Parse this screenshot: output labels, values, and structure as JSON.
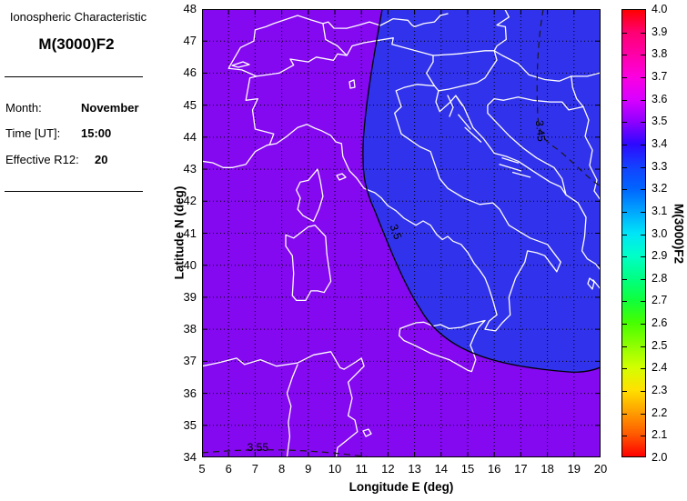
{
  "panel": {
    "app_title": "Ionospheric Characteristic",
    "parameter": "M(3000)F2",
    "fields": [
      {
        "label": "Month:",
        "value": "November"
      },
      {
        "label": "Time [UT]:",
        "value": "15:00"
      },
      {
        "label": "Effective R12:",
        "value": "20"
      }
    ]
  },
  "chart_data": {
    "type": "heatmap",
    "title": "M(3000)F2",
    "xlabel": "Longitude E (deg)",
    "ylabel": "Latitude N (deg)",
    "xlim": [
      5,
      20
    ],
    "ylim": [
      34,
      48
    ],
    "x_ticks": [
      5,
      6,
      7,
      8,
      9,
      10,
      11,
      12,
      13,
      14,
      15,
      16,
      17,
      18,
      19,
      20
    ],
    "y_ticks": [
      34,
      35,
      36,
      37,
      38,
      39,
      40,
      41,
      42,
      43,
      44,
      45,
      46,
      47,
      48
    ],
    "grid": true,
    "map_region": "Italy and central Mediterranean",
    "fill_regions": [
      {
        "name": "west-region",
        "value_band": "3.5-3.6",
        "color": "#8408F0"
      },
      {
        "name": "southeast-oval",
        "value_band": "3.4-3.5",
        "color": "#3132EC"
      }
    ],
    "contours": [
      {
        "value": "3.45",
        "style": "dashed",
        "label_lon": 17.75,
        "label_lat": 44.2,
        "label_rotation": 84
      },
      {
        "value": "3.5",
        "style": "solid",
        "label_lon": 12.3,
        "label_lat": 41.05,
        "label_rotation": 70
      },
      {
        "value": "3.55",
        "style": "dashed",
        "label_lon": 7.1,
        "label_lat": 34.3,
        "label_rotation": 0
      }
    ],
    "colorbar": {
      "label": "M(3000)F2",
      "min": 2.0,
      "max": 4.0,
      "tick_labels": [
        "4.0",
        "3.9",
        "3.8",
        "3.7",
        "3.6",
        "3.5",
        "3.4",
        "3.3",
        "3.2",
        "3.1",
        "3.0",
        "2.9",
        "2.8",
        "2.7",
        "2.6",
        "2.5",
        "2.4",
        "2.3",
        "2.2",
        "2.1",
        "2.0"
      ],
      "gradient": [
        {
          "pos": 0,
          "color": "#FF0000"
        },
        {
          "pos": 5,
          "color": "#FF0073"
        },
        {
          "pos": 10,
          "color": "#FF00A8"
        },
        {
          "pos": 15,
          "color": "#FB00E1"
        },
        {
          "pos": 20,
          "color": "#D900FF"
        },
        {
          "pos": 25,
          "color": "#8F00FF"
        },
        {
          "pos": 30,
          "color": "#2E08FF"
        },
        {
          "pos": 35,
          "color": "#1440FF"
        },
        {
          "pos": 40,
          "color": "#0064FF"
        },
        {
          "pos": 45,
          "color": "#00A4FF"
        },
        {
          "pos": 50,
          "color": "#00E4F8"
        },
        {
          "pos": 55,
          "color": "#00FFC8"
        },
        {
          "pos": 60,
          "color": "#00FF85"
        },
        {
          "pos": 65,
          "color": "#0FFF3C"
        },
        {
          "pos": 70,
          "color": "#46FF00"
        },
        {
          "pos": 75,
          "color": "#8CFF00"
        },
        {
          "pos": 80,
          "color": "#D2FF00"
        },
        {
          "pos": 85,
          "color": "#FFE100"
        },
        {
          "pos": 90,
          "color": "#FFA000"
        },
        {
          "pos": 95,
          "color": "#FF5A00"
        },
        {
          "pos": 100,
          "color": "#FF0000"
        }
      ]
    },
    "coastline_color": "#FFFFFF",
    "grid_color": "#000000"
  }
}
